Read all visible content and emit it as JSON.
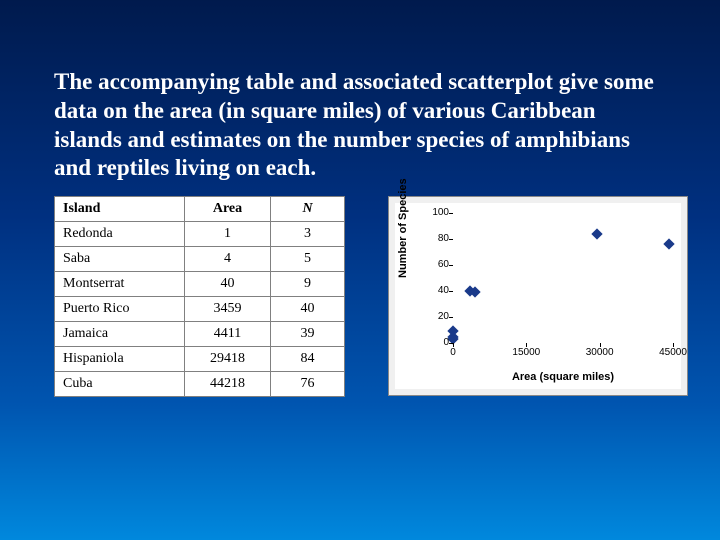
{
  "intro_text": "The accompanying table and associated scatterplot give some data on the area (in square miles) of various Caribbean islands and estimates on the number species of amphibians and reptiles living on each.",
  "table": {
    "columns": [
      "Island",
      "Area",
      "N"
    ],
    "col_classes": [
      "col-island",
      "col-area c",
      "col-n c italic"
    ],
    "rows": [
      [
        "Redonda",
        "1",
        "3"
      ],
      [
        "Saba",
        "4",
        "5"
      ],
      [
        "Montserrat",
        "40",
        "9"
      ],
      [
        "Puerto Rico",
        "3459",
        "40"
      ],
      [
        "Jamaica",
        "4411",
        "39"
      ],
      [
        "Hispaniola",
        "29418",
        "84"
      ],
      [
        "Cuba",
        "44218",
        "76"
      ]
    ],
    "border_color": "#808080",
    "bg_color": "#ffffff"
  },
  "scatter": {
    "type": "scatter",
    "x_label": "Area (square miles)",
    "y_label": "Number of Species",
    "xlim": [
      0,
      45000
    ],
    "ylim": [
      0,
      100
    ],
    "xticks": [
      0,
      15000,
      30000,
      45000
    ],
    "yticks": [
      0,
      20,
      40,
      60,
      80,
      100
    ],
    "points": [
      {
        "x": 1,
        "y": 3
      },
      {
        "x": 4,
        "y": 5
      },
      {
        "x": 40,
        "y": 9
      },
      {
        "x": 3459,
        "y": 40
      },
      {
        "x": 4411,
        "y": 39
      },
      {
        "x": 29418,
        "y": 84
      },
      {
        "x": 44218,
        "y": 76
      }
    ],
    "marker_color": "#1a3a8a",
    "background_color": "#ffffff",
    "outer_bg": "#f0f0f0",
    "label_fontsize": 11,
    "tick_fontsize": 10
  }
}
